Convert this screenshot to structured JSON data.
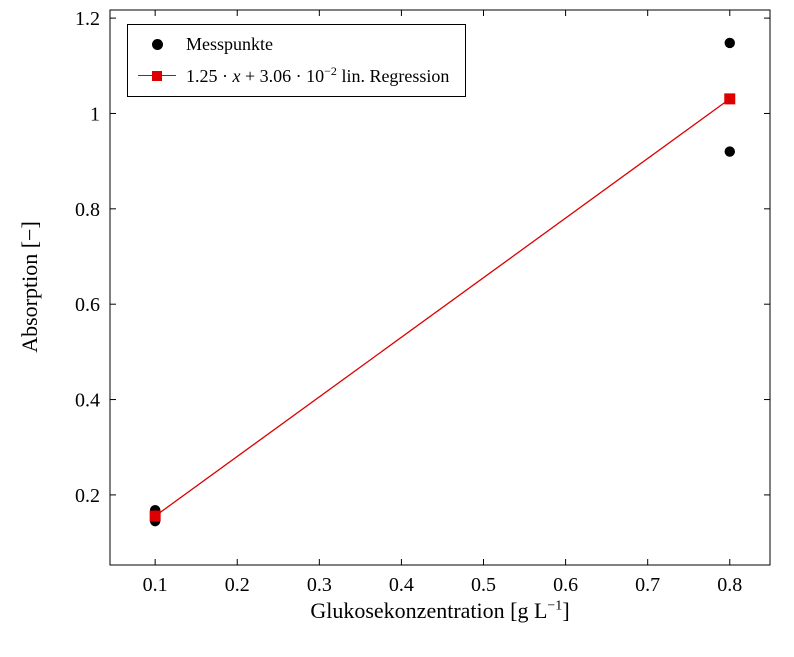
{
  "figure": {
    "background": "#ffffff",
    "frame_color": "#000000"
  },
  "axes": {
    "ylabel": "Absorption [−]",
    "xlabel_pre": "Glukosekonzentration [g L",
    "xlabel_sup": "−1",
    "xlabel_post": "]"
  },
  "legend": {
    "position": "top-left",
    "items": [
      {
        "label": "Messpunkte",
        "marker": "filled-circle",
        "color": "#000000"
      },
      {
        "label_pre": "1.25 · ",
        "label_var": "x",
        "label_mid": " + 3.06 · 10",
        "label_sup": "−2",
        "label_tail": " lin. Regression",
        "marker": "line-with-square",
        "color": "#dd0000"
      }
    ]
  },
  "chart_data": {
    "type": "scatter",
    "title": "",
    "xlabel": "Glukosekonzentration [g L^−1]",
    "ylabel": "Absorption [−]",
    "grid": false,
    "legend_position": "top-left",
    "xlim": [
      0.045,
      0.849
    ],
    "ylim": [
      0.053,
      1.217
    ],
    "xticks": [
      0.1,
      0.2,
      0.3,
      0.4,
      0.5,
      0.6,
      0.7,
      0.8
    ],
    "xtick_labels": [
      "0.1",
      "0.2",
      "0.3",
      "0.4",
      "0.5",
      "0.6",
      "0.7",
      "0.8"
    ],
    "yticks": [
      0.2,
      0.4,
      0.6,
      0.8,
      1.0,
      1.2
    ],
    "ytick_labels": [
      "0.2",
      "0.4",
      "0.6",
      "0.8",
      "1",
      "1.2"
    ],
    "series": [
      {
        "name": "Messpunkte",
        "type": "scatter",
        "marker": "circle",
        "marker_radius": 5.2,
        "color": "#000000",
        "points": [
          [
            0.1,
            0.145
          ],
          [
            0.1,
            0.168
          ],
          [
            0.8,
            0.92
          ],
          [
            0.8,
            1.148
          ]
        ]
      },
      {
        "name": "1.25·x + 3.06·10^−2 lin. Regression",
        "type": "line",
        "marker": "square",
        "marker_size": 11,
        "color": "#dd0000",
        "line_width": 1.3,
        "slope": 1.25,
        "intercept": 0.0306,
        "points": [
          [
            0.1,
            0.1556
          ],
          [
            0.8,
            1.0306
          ]
        ]
      }
    ]
  }
}
